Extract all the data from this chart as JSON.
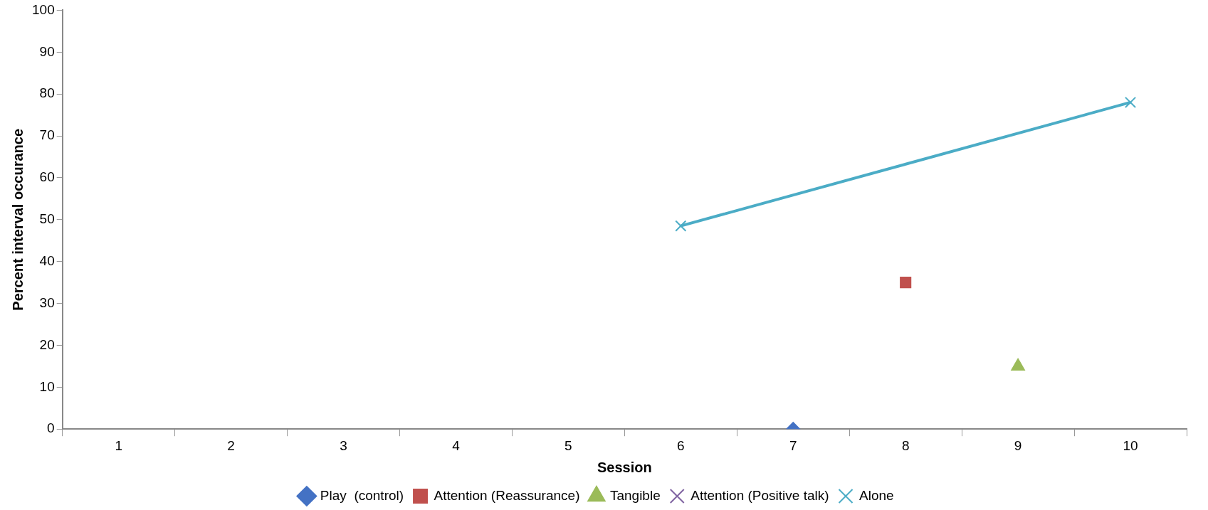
{
  "chart_data": {
    "type": "line",
    "xlabel": "Session",
    "ylabel": "Percent interval occurance",
    "categories": [
      "1",
      "2",
      "3",
      "4",
      "5",
      "6",
      "7",
      "8",
      "9",
      "10"
    ],
    "series": [
      {
        "name": "Play  (control)",
        "color": "#4472c4",
        "marker": "diamond",
        "values": [
          null,
          null,
          null,
          null,
          null,
          null,
          0,
          null,
          null,
          null
        ]
      },
      {
        "name": "Attention (Reassurance)",
        "color": "#c0504d",
        "marker": "square",
        "values": [
          null,
          null,
          null,
          null,
          null,
          null,
          null,
          35,
          null,
          null
        ]
      },
      {
        "name": "Tangible",
        "color": "#9bbb59",
        "marker": "triangle",
        "values": [
          null,
          null,
          null,
          null,
          null,
          null,
          null,
          null,
          15,
          null
        ]
      },
      {
        "name": "Attention (Positive talk)",
        "color": "#8064a2",
        "marker": "cross",
        "values": [
          null,
          null,
          null,
          null,
          null,
          null,
          null,
          null,
          null,
          null
        ]
      },
      {
        "name": "Alone",
        "color": "#4bacc6",
        "marker": "cross",
        "values": [
          null,
          null,
          null,
          null,
          null,
          48.5,
          null,
          null,
          null,
          78
        ]
      }
    ],
    "ylim": [
      0,
      100
    ],
    "yticks": [
      0,
      10,
      20,
      30,
      40,
      50,
      60,
      70,
      80,
      90,
      100
    ],
    "grid": false,
    "legend": "bottom"
  }
}
